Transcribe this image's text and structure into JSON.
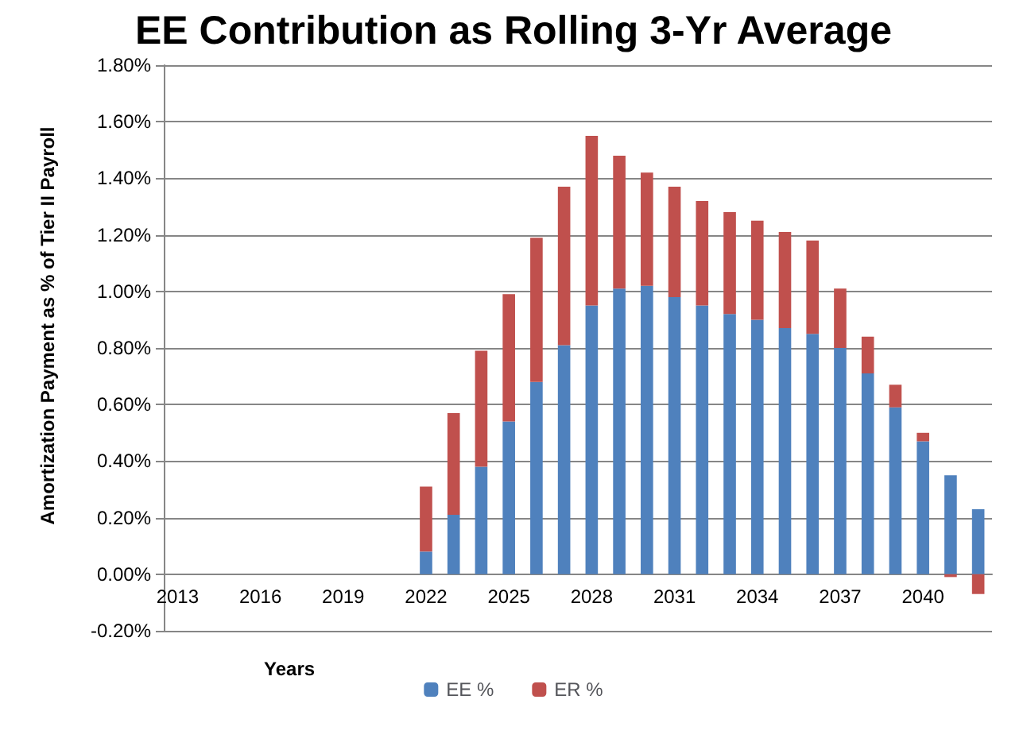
{
  "chart_data": {
    "type": "bar",
    "title": "EE Contribution as Rolling 3-Yr Average",
    "xlabel": "Years",
    "ylabel": "Amortization Payment as % of Tier II Payroll",
    "categories": [
      "2013",
      null,
      null,
      "2016",
      null,
      null,
      "2019",
      null,
      null,
      "2022",
      null,
      null,
      "2025",
      null,
      null,
      "2028",
      null,
      null,
      "2031",
      null,
      null,
      "2034",
      null,
      null,
      "2037",
      null,
      null,
      "2040",
      null,
      null
    ],
    "stacked": true,
    "series": [
      {
        "name": "EE %",
        "color": "#4f81bd",
        "values": [
          null,
          null,
          null,
          null,
          null,
          null,
          null,
          null,
          null,
          0.08,
          0.21,
          0.38,
          0.54,
          0.68,
          0.81,
          0.95,
          1.01,
          1.02,
          0.98,
          0.95,
          0.92,
          0.9,
          0.87,
          0.85,
          0.8,
          0.71,
          0.59,
          0.47,
          0.35,
          0.23
        ]
      },
      {
        "name": "ER %",
        "color": "#c0504d",
        "values": [
          null,
          null,
          null,
          null,
          null,
          null,
          null,
          null,
          null,
          0.23,
          0.36,
          0.41,
          0.45,
          0.51,
          0.56,
          0.6,
          0.47,
          0.4,
          0.39,
          0.37,
          0.36,
          0.35,
          0.34,
          0.33,
          0.21,
          0.13,
          0.08,
          0.03,
          -0.01,
          -0.07
        ]
      }
    ],
    "ylim": [
      -0.2,
      1.8
    ],
    "yticks": [
      {
        "value": -0.2,
        "label": "-0.20%"
      },
      {
        "value": 0,
        "label": "0.00%"
      },
      {
        "value": 0.2,
        "label": "0.20%"
      },
      {
        "value": 0.4,
        "label": "0.40%"
      },
      {
        "value": 0.6,
        "label": "0.60%"
      },
      {
        "value": 0.8,
        "label": "0.80%"
      },
      {
        "value": 1.0,
        "label": "1.00%"
      },
      {
        "value": 1.2,
        "label": "1.20%"
      },
      {
        "value": 1.4,
        "label": "1.40%"
      },
      {
        "value": 1.6,
        "label": "1.60%"
      },
      {
        "value": 1.8,
        "label": "1.80%"
      }
    ],
    "grid": "y",
    "legend": "bottom"
  }
}
